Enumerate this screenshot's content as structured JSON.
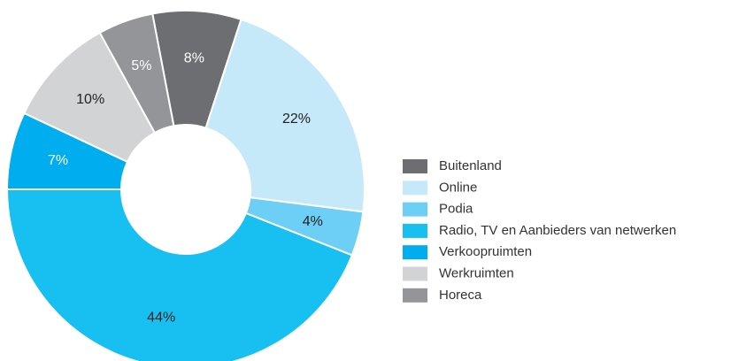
{
  "chart_data": {
    "type": "donut",
    "categories": [
      "Buitenland",
      "Online",
      "Podia",
      "Radio, TV en Aanbieders van netwerken",
      "Verkoopruimten",
      "Werkruimten",
      "Horeca"
    ],
    "values": [
      8,
      22,
      4,
      44,
      7,
      10,
      5
    ],
    "value_labels": [
      "8%",
      "22%",
      "4%",
      "44%",
      "7%",
      "10%",
      "5%"
    ],
    "colors": [
      "#6d6e71",
      "#c6e9f9",
      "#6dcff6",
      "#18c0f1",
      "#00aeef",
      "#d1d3d4",
      "#939598"
    ],
    "label_colors": [
      "#ffffff",
      "#222222",
      "#222222",
      "#222222",
      "#ffffff",
      "#222222",
      "#ffffff"
    ],
    "legend": "right"
  }
}
